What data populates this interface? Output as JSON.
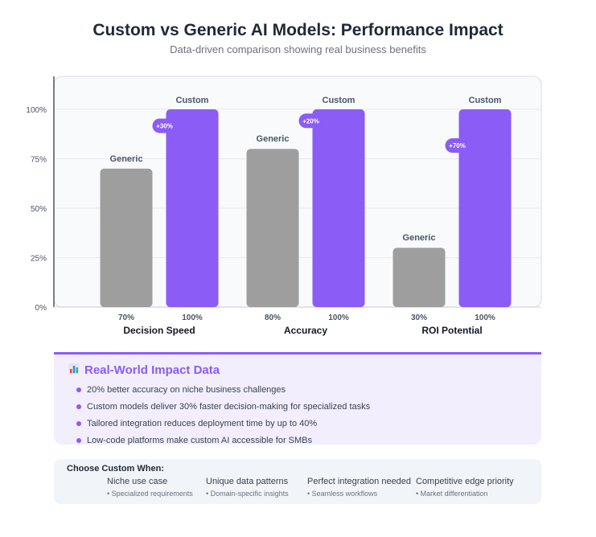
{
  "header": {
    "title": "Custom vs Generic AI Models: Performance Impact",
    "subtitle": "Data-driven comparison showing real business benefits"
  },
  "colors": {
    "generic": "#9e9e9e",
    "custom": "#8b5cf6",
    "accent": "#8b5cf6"
  },
  "chart_data": {
    "type": "bar",
    "categories": [
      "Decision Speed",
      "Accuracy",
      "ROI Potential"
    ],
    "series": [
      {
        "name": "Generic",
        "values": [
          70,
          80,
          30
        ]
      },
      {
        "name": "Custom",
        "values": [
          100,
          100,
          100
        ]
      }
    ],
    "value_labels": {
      "Generic": [
        "70%",
        "80%",
        "30%"
      ],
      "Custom": [
        "100%",
        "100%",
        "100%"
      ]
    },
    "improvement_badges": [
      "+30%",
      "+20%",
      "+70%"
    ],
    "ylim": [
      0,
      115
    ],
    "yticks": [
      0,
      25,
      50,
      75,
      100
    ],
    "ytick_labels": [
      "0%",
      "25%",
      "50%",
      "75%",
      "100%"
    ],
    "grid": true
  },
  "impact": {
    "icon": "bar-chart-icon",
    "title": "Real-World Impact Data",
    "items": [
      "20% better accuracy on niche business challenges",
      "Custom models deliver 30% faster decision-making for specialized tasks",
      "Tailored integration reduces deployment time by up to 40%",
      "Low-code platforms make custom AI accessible for SMBs"
    ]
  },
  "choose": {
    "title": "Choose Custom When:",
    "criteria": [
      {
        "title": "Niche use case",
        "desc": "• Specialized requirements"
      },
      {
        "title": "Unique data patterns",
        "desc": "• Domain-specific insights"
      },
      {
        "title": "Perfect integration needed",
        "desc": "• Seamless workflows"
      },
      {
        "title": "Competitive edge priority",
        "desc": "• Market differentiation"
      }
    ]
  }
}
